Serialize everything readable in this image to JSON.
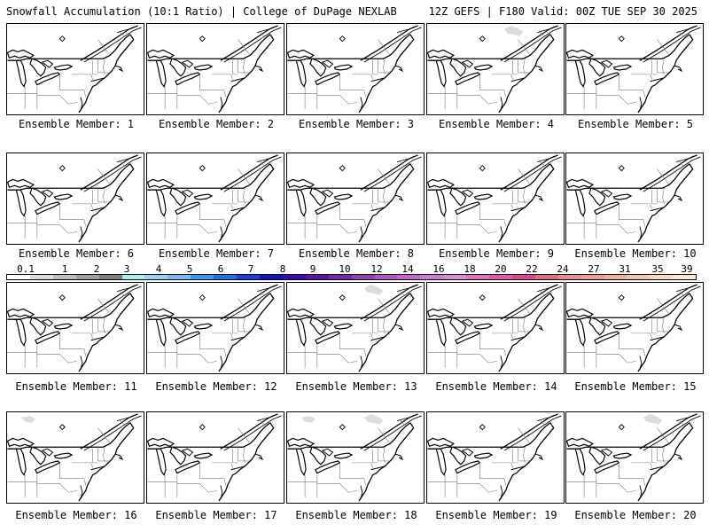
{
  "header": {
    "left": "Snowfall Accumulation (10:1 Ratio) | College of DuPage NEXLAB",
    "right": "12Z GEFS | F180 Valid: 00Z TUE SEP 30 2025"
  },
  "members": [
    {
      "label": "Ensemble Member: 1",
      "snow": []
    },
    {
      "label": "Ensemble Member: 2",
      "snow": []
    },
    {
      "label": "Ensemble Member: 3",
      "snow": []
    },
    {
      "label": "Ensemble Member: 4",
      "snow": [
        "northern-quebec"
      ]
    },
    {
      "label": "Ensemble Member: 5",
      "snow": []
    },
    {
      "label": "Ensemble Member: 6",
      "snow": []
    },
    {
      "label": "Ensemble Member: 7",
      "snow": []
    },
    {
      "label": "Ensemble Member: 8",
      "snow": []
    },
    {
      "label": "Ensemble Member: 9",
      "snow": []
    },
    {
      "label": "Ensemble Member: 10",
      "snow": []
    },
    {
      "label": "Ensemble Member: 11",
      "snow": []
    },
    {
      "label": "Ensemble Member: 12",
      "snow": []
    },
    {
      "label": "Ensemble Member: 13",
      "snow": [
        "northern-quebec"
      ]
    },
    {
      "label": "Ensemble Member: 14",
      "snow": []
    },
    {
      "label": "Ensemble Member: 15",
      "snow": []
    },
    {
      "label": "Ensemble Member: 16",
      "snow": [
        "northern-ontario"
      ]
    },
    {
      "label": "Ensemble Member: 17",
      "snow": []
    },
    {
      "label": "Ensemble Member: 18",
      "snow": [
        "northern-ontario",
        "northern-quebec"
      ]
    },
    {
      "label": "Ensemble Member: 19",
      "snow": []
    },
    {
      "label": "Ensemble Member: 20",
      "snow": [
        "northern-quebec"
      ]
    }
  ],
  "scale": {
    "labels": [
      "0.1",
      "1",
      "2",
      "3",
      "4",
      "5",
      "6",
      "7",
      "8",
      "9",
      "10",
      "12",
      "14",
      "16",
      "18",
      "20",
      "22",
      "24",
      "27",
      "31",
      "35",
      "39"
    ],
    "colors": [
      "#ffffff",
      "#dcdcdc",
      "#bdbdbd",
      "#9e9e9e",
      "#7f7f7f",
      "#a8f0f0",
      "#96d2fa",
      "#78b9fa",
      "#3c97f5",
      "#1e6eeb",
      "#1c3ee0",
      "#1010d0",
      "#3c0ab4",
      "#5a14a0",
      "#7828a0",
      "#963cb4",
      "#b450c8",
      "#c864d2",
      "#d278d8",
      "#dc8cd2",
      "#e070c0",
      "#e05aa8",
      "#dc4690",
      "#e06e82",
      "#e68c8c",
      "#ec9c8c",
      "#f0b09c",
      "#f4c4ac",
      "#f8d8c0",
      "#fce8d4"
    ]
  },
  "map_symbols": {
    "marker": "diamond-marker",
    "snow_color": "#dcdcdc"
  }
}
